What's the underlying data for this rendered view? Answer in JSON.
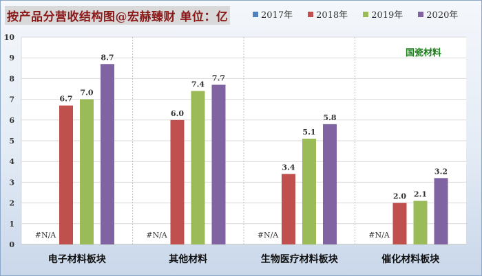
{
  "header": {
    "title": "按产品分营收结构图@宏赫臻财 单位：亿"
  },
  "chart_data": {
    "type": "bar",
    "categories": [
      "电子材料板块",
      "其他材料",
      "生物医疗材料板块",
      "催化材料板块"
    ],
    "series": [
      {
        "name": "2017年",
        "color": "#4f81bd",
        "values": [
          null,
          null,
          null,
          null
        ]
      },
      {
        "name": "2018年",
        "color": "#c0504d",
        "values": [
          6.7,
          6.0,
          3.4,
          2.0
        ]
      },
      {
        "name": "2019年",
        "color": "#9bbb59",
        "values": [
          7.0,
          7.4,
          5.1,
          2.1
        ]
      },
      {
        "name": "2020年",
        "color": "#8064a2",
        "values": [
          8.7,
          7.7,
          5.8,
          3.2
        ]
      }
    ],
    "data_labels": [
      [
        "#N/A",
        "#N/A",
        "#N/A",
        "#N/A"
      ],
      [
        "6.7",
        "6.0",
        "3.4",
        "2.0"
      ],
      [
        "7.0",
        "7.4",
        "5.1",
        "2.1"
      ],
      [
        "8.7",
        "7.7",
        "5.8",
        "3.2"
      ]
    ],
    "y_ticks": [
      "0",
      "1",
      "2",
      "3",
      "4",
      "5",
      "6",
      "7",
      "8",
      "9",
      "10"
    ],
    "ylim": [
      0,
      10
    ],
    "grid": true,
    "legend_position": "top-right",
    "annotation": "国瓷材料"
  }
}
